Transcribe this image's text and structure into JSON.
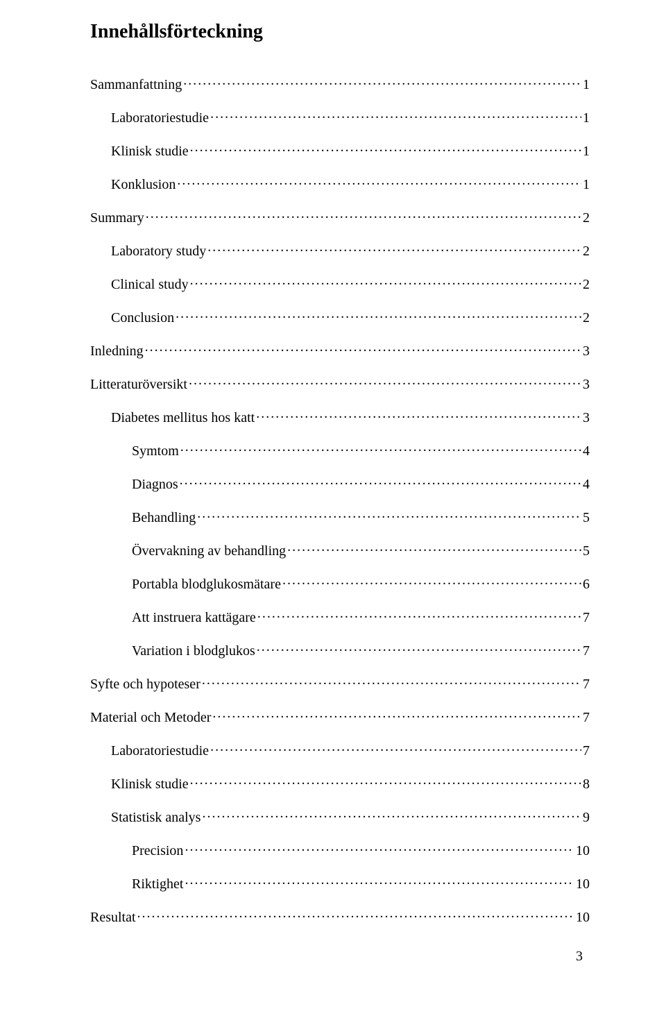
{
  "title": "Innehållsförteckning",
  "page_number": "3",
  "font": {
    "family": "Times New Roman",
    "title_size_pt": 21,
    "body_size_pt": 15
  },
  "colors": {
    "text": "#000000",
    "background": "#ffffff"
  },
  "toc": [
    {
      "label": "Sammanfattning",
      "page": "1",
      "indent": 0
    },
    {
      "label": "Laboratoriestudie",
      "page": "1",
      "indent": 1
    },
    {
      "label": "Klinisk studie",
      "page": "1",
      "indent": 1
    },
    {
      "label": "Konklusion",
      "page": "1",
      "indent": 1
    },
    {
      "label": "Summary",
      "page": "2",
      "indent": 0
    },
    {
      "label": "Laboratory study",
      "page": "2",
      "indent": 1
    },
    {
      "label": "Clinical study",
      "page": "2",
      "indent": 1
    },
    {
      "label": "Conclusion",
      "page": "2",
      "indent": 1
    },
    {
      "label": "Inledning",
      "page": "3",
      "indent": 0
    },
    {
      "label": "Litteraturöversikt",
      "page": "3",
      "indent": 0
    },
    {
      "label": "Diabetes mellitus hos katt",
      "page": "3",
      "indent": 1
    },
    {
      "label": "Symtom",
      "page": "4",
      "indent": 2
    },
    {
      "label": "Diagnos",
      "page": "4",
      "indent": 2
    },
    {
      "label": "Behandling",
      "page": "5",
      "indent": 2
    },
    {
      "label": "Övervakning av behandling",
      "page": "5",
      "indent": 2
    },
    {
      "label": "Portabla blodglukosmätare",
      "page": "6",
      "indent": 2
    },
    {
      "label": "Att instruera kattägare",
      "page": "7",
      "indent": 2
    },
    {
      "label": "Variation i blodglukos",
      "page": "7",
      "indent": 2
    },
    {
      "label": "Syfte och hypoteser",
      "page": "7",
      "indent": 0
    },
    {
      "label": "Material och Metoder",
      "page": "7",
      "indent": 0
    },
    {
      "label": "Laboratoriestudie",
      "page": "7",
      "indent": 1
    },
    {
      "label": "Klinisk studie",
      "page": "8",
      "indent": 1
    },
    {
      "label": "Statistisk analys",
      "page": "9",
      "indent": 1
    },
    {
      "label": "Precision",
      "page": "10",
      "indent": 2
    },
    {
      "label": "Riktighet",
      "page": "10",
      "indent": 2
    },
    {
      "label": "Resultat",
      "page": "10",
      "indent": 0
    }
  ]
}
